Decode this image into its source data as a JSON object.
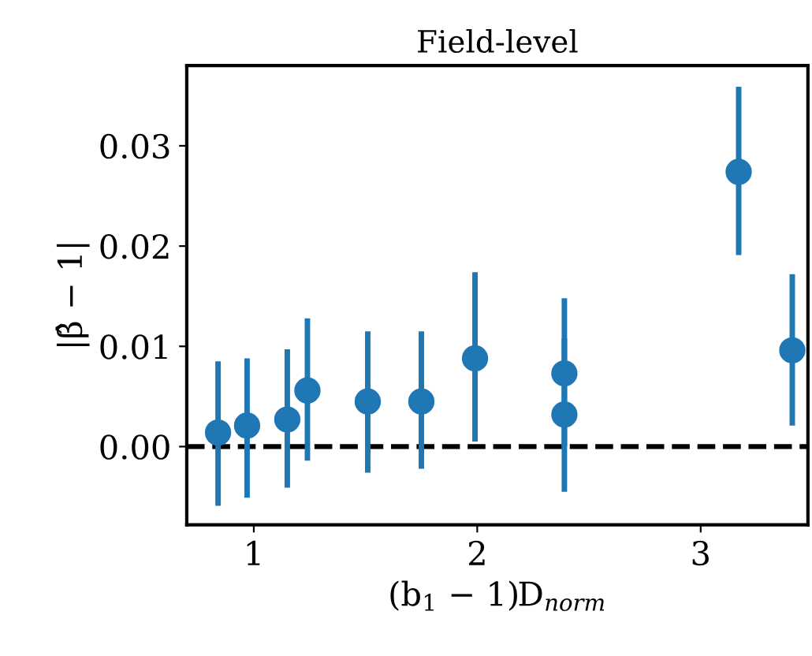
{
  "chart_data": {
    "type": "scatter",
    "title": "Field-level",
    "xlabel": "(b$_{1}$ − 1)D$_{norm}$",
    "ylabel": "|β̂ − 1|",
    "x": [
      0.84,
      0.97,
      1.15,
      1.24,
      1.51,
      1.75,
      1.99,
      2.39,
      2.39,
      3.17,
      3.41
    ],
    "series": [
      {
        "color": "#1f77b4",
        "values": [
          0.0014,
          0.0021,
          0.0027,
          0.0056,
          0.0045,
          0.0045,
          0.0088,
          0.0073,
          0.0032,
          0.0274,
          0.0096
        ],
        "errors": [
          [
            -0.0059,
            0.0085
          ],
          [
            -0.0051,
            0.0088
          ],
          [
            -0.0041,
            0.0097
          ],
          [
            -0.0014,
            0.0128
          ],
          [
            -0.0026,
            0.0115
          ],
          [
            -0.0022,
            0.0115
          ],
          [
            0.0005,
            0.0174
          ],
          [
            0.0,
            0.0148
          ],
          [
            -0.0045,
            0.0108
          ],
          [
            0.0191,
            0.0359
          ],
          [
            0.0021,
            0.0172
          ]
        ]
      }
    ],
    "marker": "circle",
    "xlim": [
      0.7,
      3.48
    ],
    "ylim": [
      -0.0078,
      0.038
    ],
    "xticks": [
      1,
      2,
      3
    ],
    "yticks": [
      {
        "value": 0,
        "label": "0.00"
      },
      {
        "value": 0.01,
        "label": "0.01"
      },
      {
        "value": 0.02,
        "label": "0.02"
      },
      {
        "value": 0.03,
        "label": "0.03"
      }
    ],
    "ref_lines": [
      {
        "axis": "y",
        "value": 0,
        "label": null,
        "color": "#000000",
        "line_style": "dashed"
      }
    ],
    "grid": false
  }
}
